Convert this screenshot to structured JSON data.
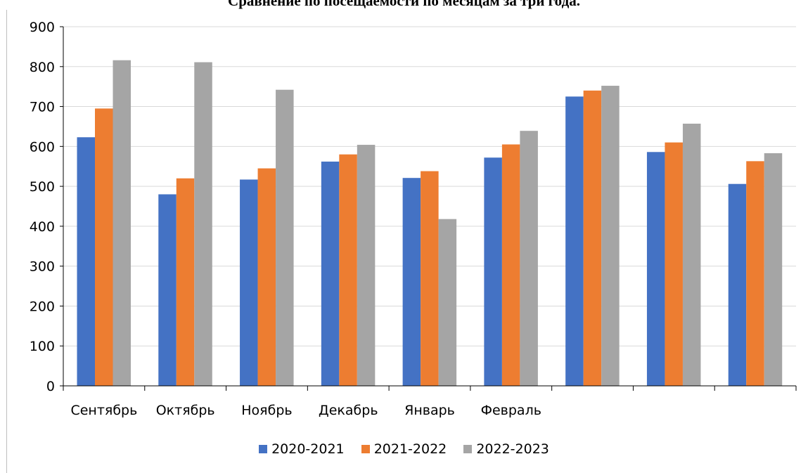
{
  "chart_data": {
    "type": "bar",
    "title": "Сравнение по посещаемости по месяцам за три года.",
    "categories": [
      "Сентябрь",
      "Октябрь",
      "Ноябрь",
      "Декабрь",
      "Январь",
      "Февраль",
      "",
      "",
      ""
    ],
    "series": [
      {
        "name": "2020-2021",
        "color": "#4472c4",
        "values": [
          623,
          480,
          517,
          562,
          521,
          572,
          725,
          586,
          506
        ]
      },
      {
        "name": "2021-2022",
        "color": "#ed7d31",
        "values": [
          695,
          520,
          545,
          580,
          538,
          605,
          740,
          610,
          563
        ]
      },
      {
        "name": "2022-2023",
        "color": "#a5a5a5",
        "values": [
          816,
          811,
          742,
          604,
          418,
          639,
          752,
          657,
          583
        ]
      }
    ],
    "ylim": [
      0,
      900
    ],
    "yticks": [
      "0",
      "100",
      "200",
      "300",
      "400",
      "500",
      "600",
      "700",
      "800",
      "900"
    ],
    "grid": true,
    "legend_position": "bottom"
  }
}
